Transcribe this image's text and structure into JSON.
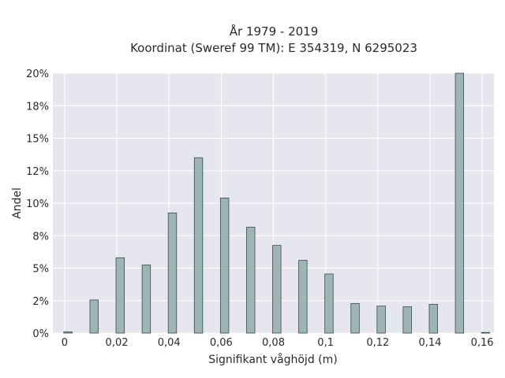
{
  "chart_data": {
    "type": "bar",
    "title": "År 1979 - 2019",
    "subtitle": "Koordinat (Sweref 99 TM): E 354319, N 6295023",
    "xlabel": "Signifikant våghöjd (m)",
    "ylabel": "Andel",
    "xlim": [
      -0.0045,
      0.1645
    ],
    "ylim": [
      0,
      0.2
    ],
    "xticks": [
      0,
      0.02,
      0.04,
      0.06,
      0.08,
      0.1,
      0.12,
      0.14,
      0.16
    ],
    "xtick_labels": [
      "0",
      "0,02",
      "0,04",
      "0,06",
      "0,08",
      "0,1",
      "0,12",
      "0,14",
      "0,16"
    ],
    "yticks": [
      0,
      0.025,
      0.05,
      0.075,
      0.1,
      0.125,
      0.15,
      0.175,
      0.2
    ],
    "ytick_labels": [
      "0%",
      "2%",
      "5%",
      "8%",
      "10%",
      "12%",
      "15%",
      "18%",
      "20%"
    ],
    "bar_width": 0.0032,
    "x": [
      0.0013,
      0.0113,
      0.0213,
      0.0313,
      0.0413,
      0.0513,
      0.0613,
      0.0713,
      0.0813,
      0.0913,
      0.1013,
      0.1113,
      0.1213,
      0.1313,
      0.1413,
      0.1513,
      0.1613
    ],
    "values": [
      0.001,
      0.0255,
      0.058,
      0.0525,
      0.0925,
      0.135,
      0.104,
      0.0815,
      0.0675,
      0.056,
      0.0455,
      0.0228,
      0.0208,
      0.0203,
      0.0222,
      0.2,
      0.0005
    ],
    "bar_color": "#9fb5b5",
    "bar_edge_color": "#3a4a4a",
    "plot_background": "#e6e6ef",
    "grid_color": "#ffffff",
    "grid": true
  }
}
